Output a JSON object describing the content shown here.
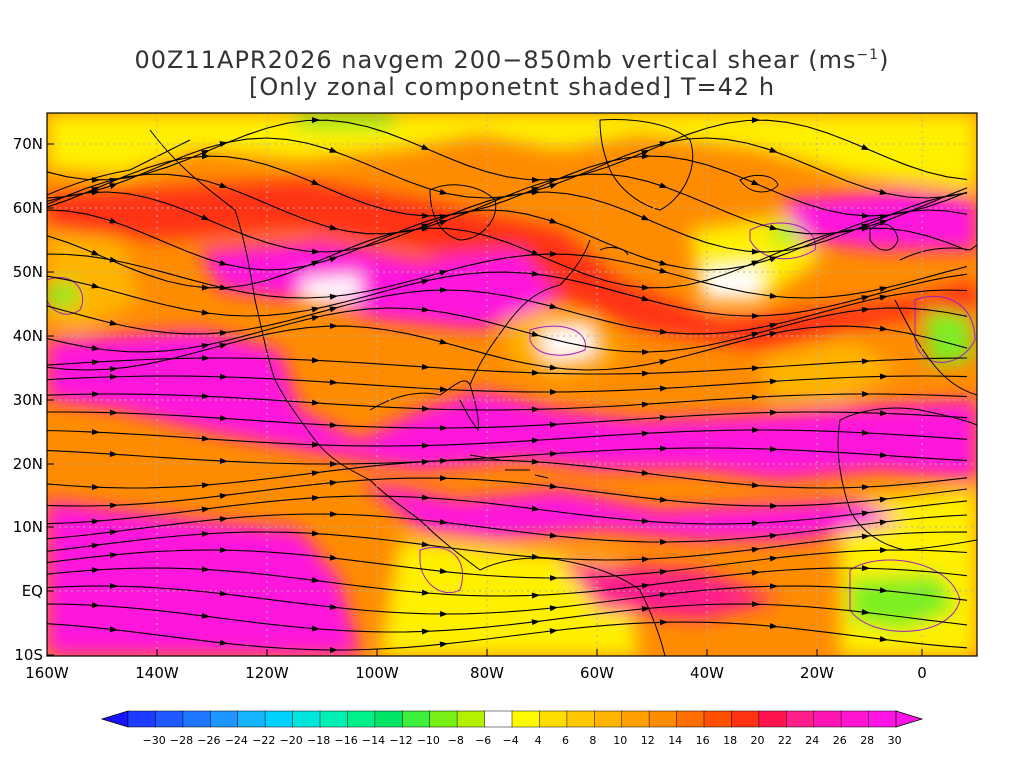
{
  "title": {
    "line1_main": "00Z11APR2026 navgem 200−850mb vertical shear (ms",
    "line1_sup": "−1",
    "line1_end": ")",
    "line2": "[Only zonal componetnt shaded] T=42 h"
  },
  "lat_labels": [
    "70N",
    "60N",
    "50N",
    "40N",
    "30N",
    "20N",
    "10N",
    "EQ",
    "10S"
  ],
  "lon_labels": [
    "160W",
    "140W",
    "120W",
    "100W",
    "80W",
    "60W",
    "40W",
    "20W",
    "0"
  ],
  "colorbar": {
    "labels": [
      "−30",
      "−28",
      "−26",
      "−24",
      "−22",
      "−20",
      "−18",
      "−16",
      "−14",
      "−12",
      "−10",
      "−8",
      "−6",
      "−4",
      "4",
      "6",
      "8",
      "10",
      "12",
      "14",
      "16",
      "18",
      "20",
      "22",
      "24",
      "26",
      "28",
      "30"
    ],
    "colors": [
      "#1414ff",
      "#1e3cff",
      "#1e5aff",
      "#1e78ff",
      "#1e96ff",
      "#14b4ff",
      "#00d2ff",
      "#00e6dc",
      "#00f0b4",
      "#00f08c",
      "#00e664",
      "#3cf03c",
      "#78f014",
      "#b4f000",
      "#ffffff",
      "#fffa00",
      "#ffdc00",
      "#ffc800",
      "#ffb400",
      "#ffa000",
      "#ff8c00",
      "#ff6e00",
      "#ff5000",
      "#ff3214",
      "#ff1450",
      "#ff1e8c",
      "#ff14b4",
      "#ff14d2",
      "#ff14e6"
    ]
  },
  "palette": {
    "magenta": "#ff14dc",
    "pink": "#ff1e8c",
    "red": "#ff3214",
    "orange": "#ff8c00",
    "amber": "#ffb400",
    "yellow": "#fff000",
    "green": "#7cf020",
    "contour": "#a020c0"
  }
}
